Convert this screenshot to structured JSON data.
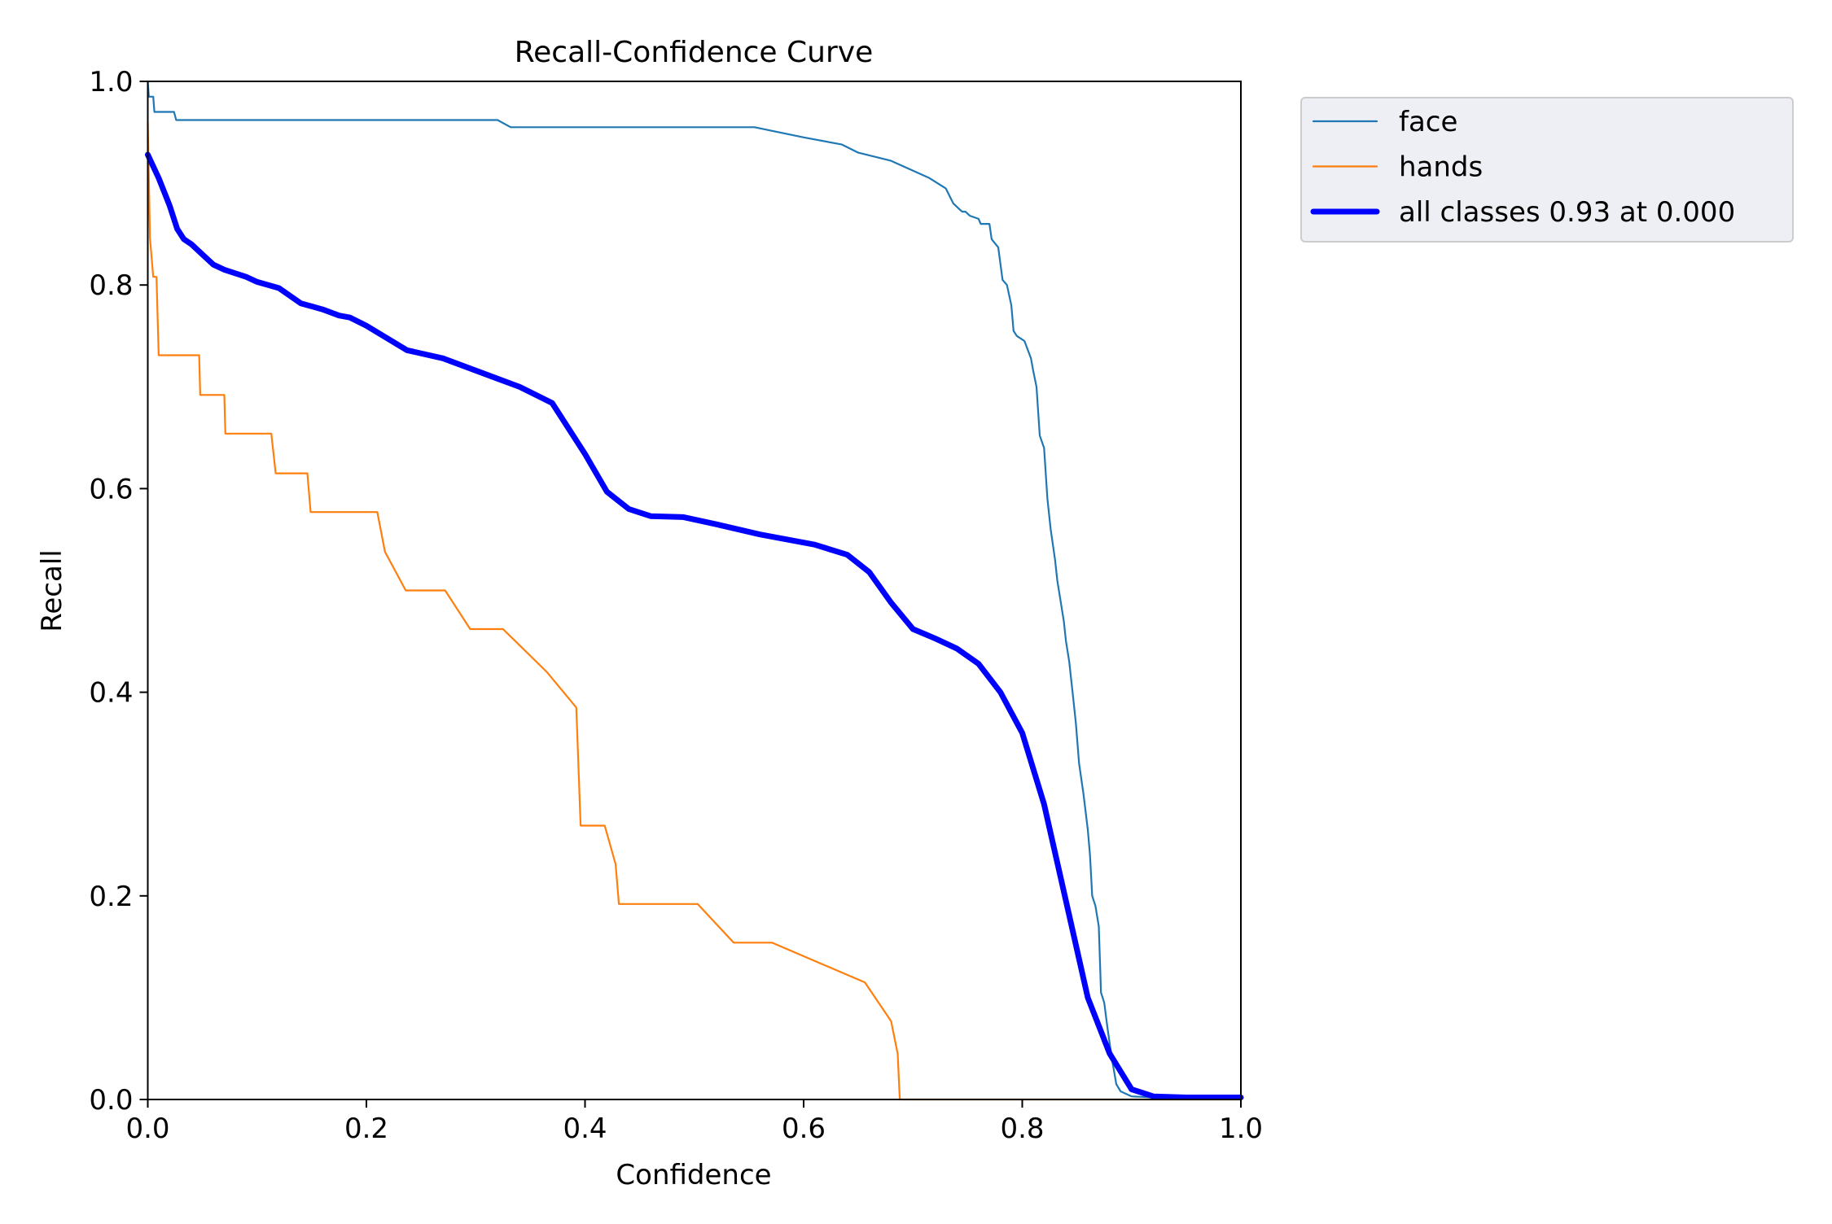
{
  "chart_data": {
    "type": "line",
    "title": "Recall-Confidence Curve",
    "xlabel": "Confidence",
    "ylabel": "Recall",
    "xlim": [
      0,
      1
    ],
    "ylim": [
      0,
      1
    ],
    "xticks": [
      "0.0",
      "0.2",
      "0.4",
      "0.6",
      "0.8",
      "1.0"
    ],
    "yticks": [
      "0.0",
      "0.2",
      "0.4",
      "0.6",
      "0.8",
      "1.0"
    ],
    "grid": false,
    "legend_position": "outside upper right",
    "series": [
      {
        "name": "face",
        "color": "#1f77b4",
        "points": [
          [
            0.0,
            1.0
          ],
          [
            0.001,
            0.985
          ],
          [
            0.005,
            0.985
          ],
          [
            0.006,
            0.97
          ],
          [
            0.024,
            0.97
          ],
          [
            0.026,
            0.962
          ],
          [
            0.32,
            0.962
          ],
          [
            0.332,
            0.955
          ],
          [
            0.555,
            0.955
          ],
          [
            0.6,
            0.945
          ],
          [
            0.635,
            0.938
          ],
          [
            0.65,
            0.93
          ],
          [
            0.68,
            0.922
          ],
          [
            0.715,
            0.905
          ],
          [
            0.73,
            0.895
          ],
          [
            0.737,
            0.88
          ],
          [
            0.742,
            0.875
          ],
          [
            0.745,
            0.872
          ],
          [
            0.748,
            0.872
          ],
          [
            0.752,
            0.868
          ],
          [
            0.76,
            0.865
          ],
          [
            0.762,
            0.86
          ],
          [
            0.77,
            0.86
          ],
          [
            0.772,
            0.845
          ],
          [
            0.778,
            0.837
          ],
          [
            0.782,
            0.805
          ],
          [
            0.786,
            0.8
          ],
          [
            0.788,
            0.79
          ],
          [
            0.79,
            0.78
          ],
          [
            0.792,
            0.755
          ],
          [
            0.795,
            0.75
          ],
          [
            0.802,
            0.745
          ],
          [
            0.808,
            0.728
          ],
          [
            0.81,
            0.716
          ],
          [
            0.813,
            0.7
          ],
          [
            0.816,
            0.652
          ],
          [
            0.82,
            0.64
          ],
          [
            0.823,
            0.59
          ],
          [
            0.826,
            0.56
          ],
          [
            0.83,
            0.53
          ],
          [
            0.832,
            0.51
          ],
          [
            0.835,
            0.49
          ],
          [
            0.838,
            0.47
          ],
          [
            0.84,
            0.45
          ],
          [
            0.843,
            0.43
          ],
          [
            0.846,
            0.4
          ],
          [
            0.849,
            0.37
          ],
          [
            0.852,
            0.33
          ],
          [
            0.856,
            0.3
          ],
          [
            0.86,
            0.265
          ],
          [
            0.862,
            0.24
          ],
          [
            0.864,
            0.2
          ],
          [
            0.867,
            0.19
          ],
          [
            0.87,
            0.17
          ],
          [
            0.872,
            0.105
          ],
          [
            0.875,
            0.095
          ],
          [
            0.878,
            0.07
          ],
          [
            0.882,
            0.04
          ],
          [
            0.886,
            0.015
          ],
          [
            0.89,
            0.008
          ],
          [
            0.9,
            0.003
          ],
          [
            0.92,
            0.002
          ],
          [
            1.0,
            0.002
          ]
        ]
      },
      {
        "name": "hands",
        "color": "#ff7f0e",
        "points": [
          [
            0.0,
            0.96
          ],
          [
            0.002,
            0.846
          ],
          [
            0.005,
            0.808
          ],
          [
            0.008,
            0.808
          ],
          [
            0.01,
            0.731
          ],
          [
            0.047,
            0.731
          ],
          [
            0.048,
            0.692
          ],
          [
            0.07,
            0.692
          ],
          [
            0.071,
            0.654
          ],
          [
            0.113,
            0.654
          ],
          [
            0.117,
            0.615
          ],
          [
            0.146,
            0.615
          ],
          [
            0.149,
            0.577
          ],
          [
            0.21,
            0.577
          ],
          [
            0.217,
            0.538
          ],
          [
            0.236,
            0.5
          ],
          [
            0.272,
            0.5
          ],
          [
            0.295,
            0.462
          ],
          [
            0.325,
            0.462
          ],
          [
            0.365,
            0.42
          ],
          [
            0.392,
            0.385
          ],
          [
            0.396,
            0.269
          ],
          [
            0.418,
            0.269
          ],
          [
            0.428,
            0.231
          ],
          [
            0.431,
            0.192
          ],
          [
            0.503,
            0.192
          ],
          [
            0.536,
            0.154
          ],
          [
            0.571,
            0.154
          ],
          [
            0.656,
            0.115
          ],
          [
            0.68,
            0.077
          ],
          [
            0.686,
            0.045
          ],
          [
            0.688,
            0.0
          ],
          [
            1.0,
            0.0
          ]
        ]
      },
      {
        "name": "all classes 0.93 at 0.000",
        "color": "#0000ff",
        "linewidth": "thick",
        "points": [
          [
            0.0,
            0.928
          ],
          [
            0.01,
            0.905
          ],
          [
            0.02,
            0.878
          ],
          [
            0.027,
            0.855
          ],
          [
            0.033,
            0.845
          ],
          [
            0.04,
            0.84
          ],
          [
            0.05,
            0.83
          ],
          [
            0.06,
            0.82
          ],
          [
            0.07,
            0.815
          ],
          [
            0.09,
            0.808
          ],
          [
            0.1,
            0.803
          ],
          [
            0.12,
            0.797
          ],
          [
            0.14,
            0.782
          ],
          [
            0.16,
            0.776
          ],
          [
            0.175,
            0.77
          ],
          [
            0.185,
            0.768
          ],
          [
            0.2,
            0.76
          ],
          [
            0.22,
            0.747
          ],
          [
            0.237,
            0.736
          ],
          [
            0.27,
            0.728
          ],
          [
            0.3,
            0.716
          ],
          [
            0.32,
            0.708
          ],
          [
            0.34,
            0.7
          ],
          [
            0.37,
            0.684
          ],
          [
            0.4,
            0.634
          ],
          [
            0.42,
            0.597
          ],
          [
            0.44,
            0.58
          ],
          [
            0.46,
            0.573
          ],
          [
            0.49,
            0.572
          ],
          [
            0.52,
            0.565
          ],
          [
            0.56,
            0.555
          ],
          [
            0.58,
            0.551
          ],
          [
            0.61,
            0.545
          ],
          [
            0.64,
            0.535
          ],
          [
            0.66,
            0.518
          ],
          [
            0.68,
            0.488
          ],
          [
            0.7,
            0.462
          ],
          [
            0.72,
            0.453
          ],
          [
            0.74,
            0.443
          ],
          [
            0.76,
            0.428
          ],
          [
            0.78,
            0.4
          ],
          [
            0.8,
            0.36
          ],
          [
            0.82,
            0.29
          ],
          [
            0.84,
            0.195
          ],
          [
            0.86,
            0.1
          ],
          [
            0.88,
            0.045
          ],
          [
            0.9,
            0.01
          ],
          [
            0.92,
            0.003
          ],
          [
            0.95,
            0.002
          ],
          [
            1.0,
            0.002
          ]
        ]
      }
    ]
  }
}
